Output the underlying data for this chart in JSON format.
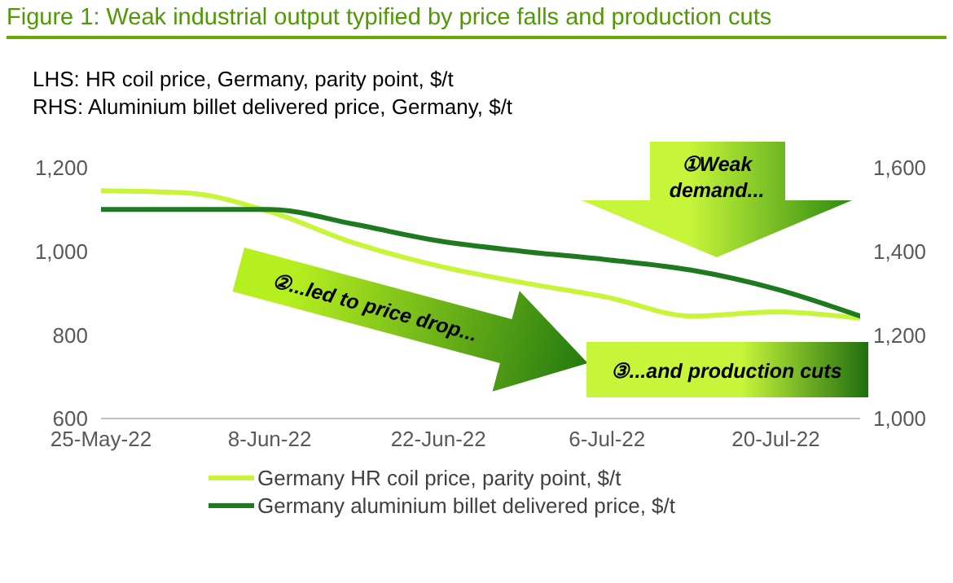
{
  "chart_data": {
    "type": "line",
    "title": "Figure 1: Weak industrial output typified by price falls and production cuts",
    "subtitle": "LHS: HR coil price, Germany, parity point, $/t\nRHS: Aluminium billet delivered price, Germany, $/t",
    "x": [
      "2022-05-25",
      "2022-06-01",
      "2022-06-08",
      "2022-06-15",
      "2022-06-22",
      "2022-06-29",
      "2022-07-06",
      "2022-07-13",
      "2022-07-20",
      "2022-07-27"
    ],
    "series": [
      {
        "name": "Germany HR coil price, parity point, $/t",
        "color": "#c6f53a",
        "values": [
          1145,
          1140,
          1095,
          1020,
          965,
          925,
          890,
          845,
          855,
          840
        ]
      },
      {
        "name": "Germany aluminium billet delivered price, $/t",
        "color": "#1f7a1f",
        "axis": "y2",
        "values": [
          1500,
          1500,
          1500,
          1465,
          1425,
          1400,
          1380,
          1355,
          1310,
          1245
        ]
      }
    ],
    "xlim": [
      "2022-05-25",
      "2022-07-27"
    ],
    "xticks": [
      {
        "value": "2022-05-25",
        "label": "25-May-22"
      },
      {
        "value": "2022-06-08",
        "label": "8-Jun-22"
      },
      {
        "value": "2022-06-22",
        "label": "22-Jun-22"
      },
      {
        "value": "2022-07-06",
        "label": "6-Jul-22"
      },
      {
        "value": "2022-07-20",
        "label": "20-Jul-22"
      }
    ],
    "ylim": [
      600,
      1200
    ],
    "yticks": [
      600,
      800,
      {
        "value": 1000,
        "label": "1,000"
      },
      {
        "value": 1200,
        "label": "1,200"
      }
    ],
    "y2lim": [
      1000,
      1600
    ],
    "y2ticks": [
      {
        "value": 1000,
        "label": "1,000"
      },
      {
        "value": 1200,
        "label": "1,200"
      },
      {
        "value": 1400,
        "label": "1,400"
      },
      {
        "value": 1600,
        "label": "1,600"
      }
    ],
    "grid": false,
    "legend": "bottom",
    "marker": "none",
    "line_style": "solid",
    "annotations": [
      "①Weak demand...",
      "②...led to price drop...",
      "③...and production cuts"
    ]
  }
}
